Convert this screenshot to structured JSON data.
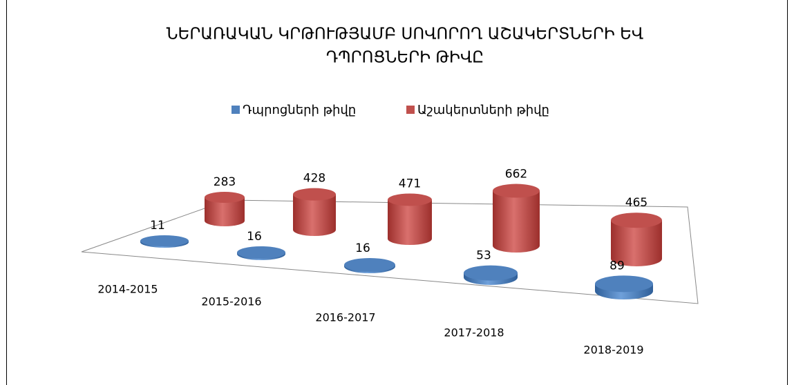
{
  "chart_data": {
    "type": "cylinder3d",
    "title": [
      "ՆԵՐԱՌԱԿԱՆ ԿՐԹՈՒԹՅԱՄԲ ՍՈՎՈՐՈՂ ԱՇԱԿԵՐՏՆԵՐԻ ԵՎ",
      "ԴՊՐՈՑՆԵՐԻ ԹԻՎԸ"
    ],
    "categories": [
      "2014-2015",
      "2015-2016",
      "2016-2017",
      "2017-2018",
      "2018-2019"
    ],
    "series": [
      {
        "name": "Դպրոցների թիվը",
        "color": "#4f81bd",
        "values": [
          11,
          16,
          16,
          53,
          89
        ]
      },
      {
        "name": "Աշակերտների թիվը",
        "color": "#c0504d",
        "values": [
          283,
          428,
          471,
          662,
          465
        ]
      }
    ]
  }
}
